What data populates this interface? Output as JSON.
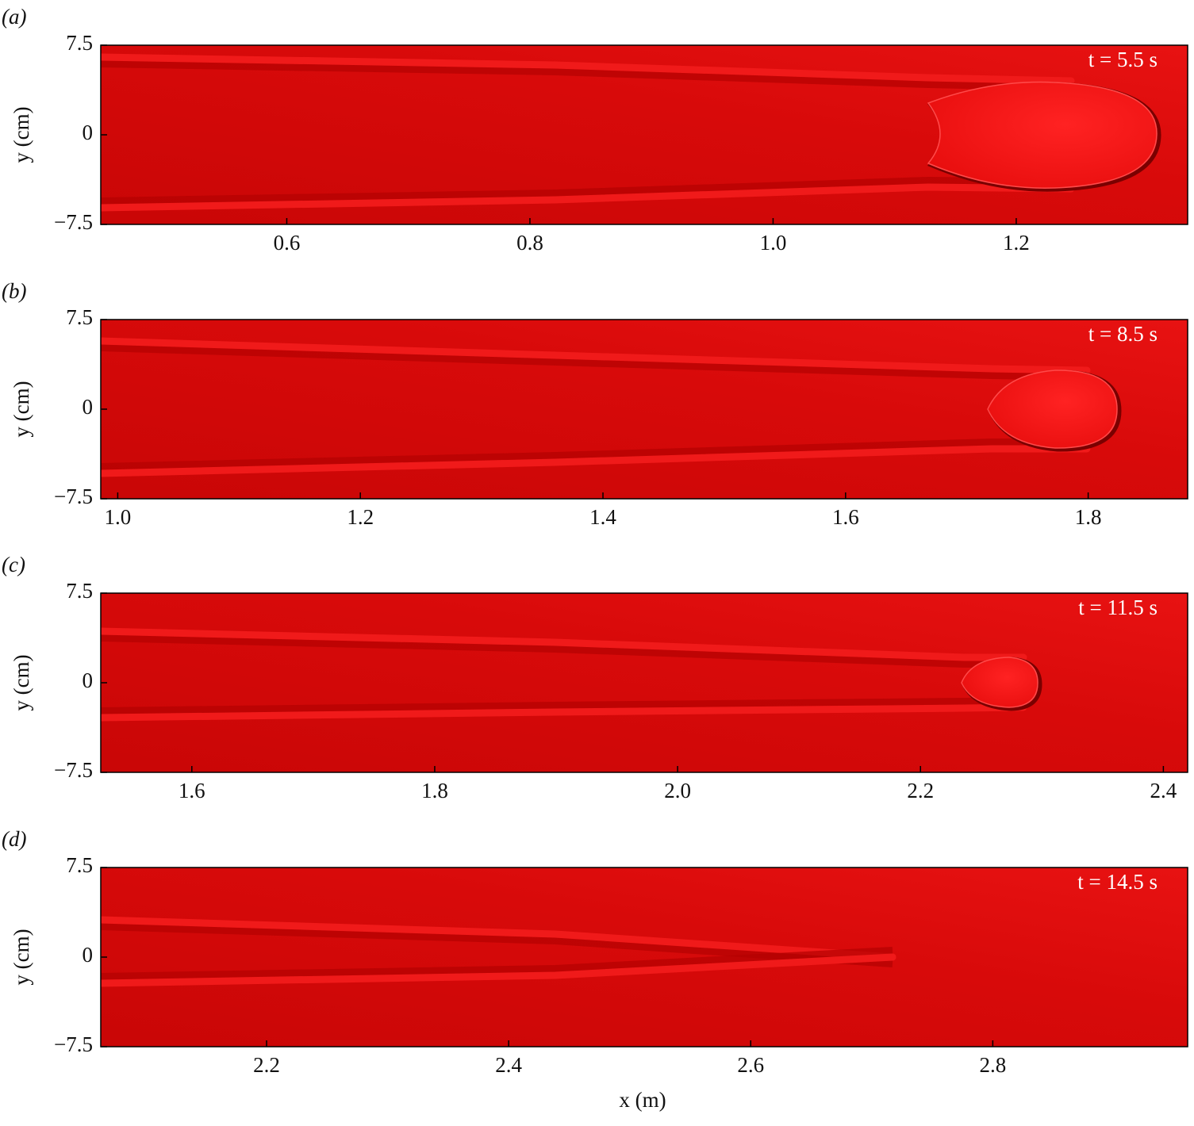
{
  "chart_data": [
    {
      "type": "field",
      "panel_label": "(a)",
      "annotation": "t = 5.5 s",
      "ylabel": "y (cm)",
      "xlim": [
        0.447,
        1.341
      ],
      "xticks": [
        0.6,
        0.8,
        {
          "value": 1.0,
          "label": "1.0"
        },
        1.2
      ],
      "ylim": [
        -7.5,
        7.5
      ],
      "yticks": [
        {
          "value": -7.5,
          "label": "−7.5"
        },
        0,
        7.5
      ]
    },
    {
      "type": "field",
      "panel_label": "(b)",
      "annotation": "t = 8.5 s",
      "ylabel": "y (cm)",
      "xlim": [
        0.986,
        1.882
      ],
      "xticks": [
        {
          "value": 1.0,
          "label": "1.0"
        },
        1.2,
        1.4,
        1.6,
        1.8
      ],
      "ylim": [
        -7.5,
        7.5
      ],
      "yticks": [
        {
          "value": -7.5,
          "label": "−7.5"
        },
        0,
        7.5
      ]
    },
    {
      "type": "field",
      "panel_label": "(c)",
      "annotation": "t = 11.5 s",
      "ylabel": "y (cm)",
      "xlim": [
        1.525,
        2.42
      ],
      "xticks": [
        1.6,
        1.8,
        {
          "value": 2.0,
          "label": "2.0"
        },
        2.2,
        2.4
      ],
      "ylim": [
        -7.5,
        7.5
      ],
      "yticks": [
        {
          "value": -7.5,
          "label": "−7.5"
        },
        0,
        7.5
      ]
    },
    {
      "type": "field",
      "panel_label": "(d)",
      "annotation": "t = 14.5 s",
      "ylabel": "y (cm)",
      "xlabel": "x (m)",
      "xlim": [
        2.063,
        2.961
      ],
      "xticks": [
        2.2,
        2.4,
        2.6,
        2.8
      ],
      "ylim": [
        -7.5,
        7.5
      ],
      "yticks": [
        {
          "value": -7.5,
          "label": "−7.5"
        },
        0,
        7.5
      ]
    }
  ]
}
